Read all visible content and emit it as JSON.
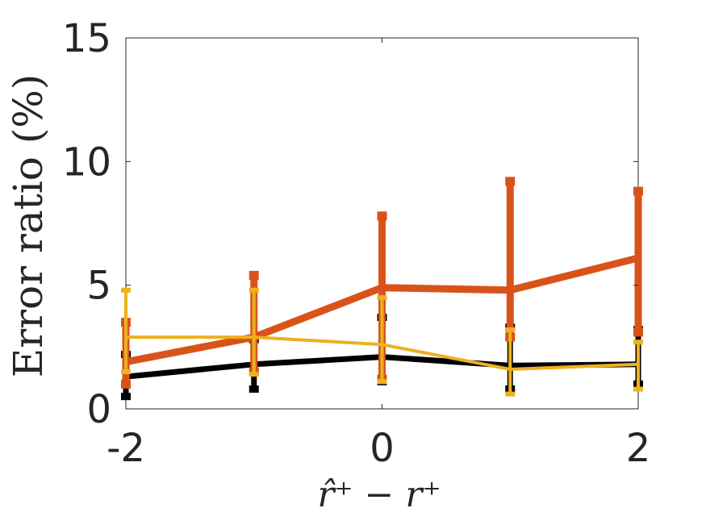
{
  "chart_data": {
    "type": "line",
    "title": "",
    "xlabel": "r̂⁺ − r⁺",
    "ylabel": "Error ratio (%)",
    "xlim": [
      -2,
      2
    ],
    "ylim": [
      0,
      15
    ],
    "x_ticks": [
      -2,
      0,
      2
    ],
    "x_tick_labels": [
      "-2",
      "0",
      "2"
    ],
    "y_ticks": [
      0,
      5,
      10,
      15
    ],
    "y_tick_labels": [
      "0",
      "5",
      "10",
      "15"
    ],
    "grid": false,
    "legend": "none",
    "x": [
      -2,
      -1,
      0,
      1,
      2
    ],
    "series": [
      {
        "color": "#000000",
        "values": [
          1.3,
          1.8,
          2.1,
          1.75,
          1.8
        ],
        "lower": [
          0.5,
          0.8,
          1.1,
          0.8,
          1.0
        ],
        "upper": [
          2.2,
          2.8,
          3.7,
          3.3,
          3.2
        ]
      },
      {
        "color": "#D95319",
        "values": [
          1.9,
          2.9,
          4.9,
          4.8,
          6.1
        ],
        "lower": [
          1.0,
          1.5,
          1.2,
          2.9,
          3.1
        ],
        "upper": [
          3.5,
          5.4,
          7.8,
          9.2,
          8.8
        ]
      },
      {
        "color": "#EDB120",
        "values": [
          2.9,
          2.9,
          2.6,
          1.6,
          1.8
        ],
        "lower": [
          1.5,
          1.4,
          1.1,
          0.6,
          0.8
        ],
        "upper": [
          4.8,
          4.8,
          4.5,
          3.2,
          2.7
        ]
      }
    ]
  }
}
